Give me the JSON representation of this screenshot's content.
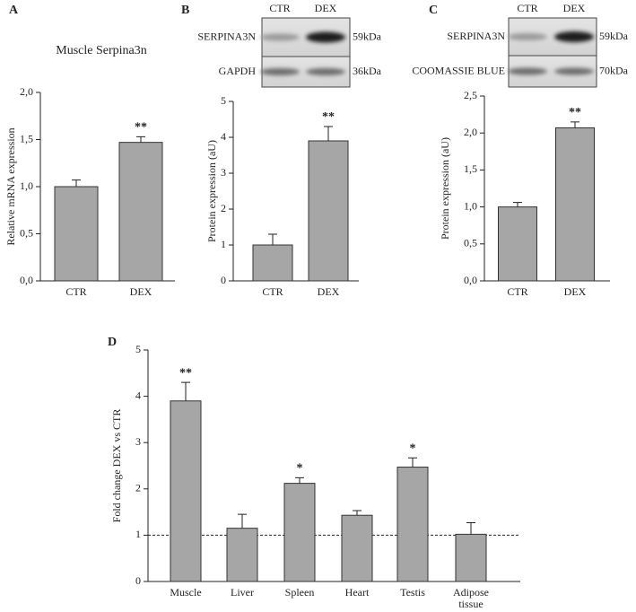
{
  "chart_data": [
    {
      "type": "bar",
      "panel": "A",
      "title": "Muscle Serpina3n",
      "ylabel": "Relative mRNA expression",
      "categories": [
        "CTR",
        "DEX"
      ],
      "values": [
        1.0,
        1.47
      ],
      "errors": [
        0.07,
        0.06
      ],
      "significance": [
        null,
        "**"
      ],
      "color": "#a6a6a6",
      "ylim": [
        0,
        2
      ],
      "yticks": [
        {
          "value": 0,
          "label": "0,0"
        },
        {
          "value": 0.5,
          "label": "0,5"
        },
        {
          "value": 1,
          "label": "1,0"
        },
        {
          "value": 1.5,
          "label": "1,5"
        },
        {
          "value": 2,
          "label": "2,0"
        }
      ]
    },
    {
      "type": "bar",
      "panel": "B",
      "ylabel": "Protein expression (aU)",
      "blot": {
        "lanes": [
          "CTR",
          "DEX"
        ],
        "rows": [
          {
            "protein": "SERPINA3N",
            "size": "59kDa"
          },
          {
            "protein": "GAPDH",
            "size": "36kDa"
          }
        ]
      },
      "categories": [
        "CTR",
        "DEX"
      ],
      "values": [
        1.0,
        3.9
      ],
      "errors": [
        0.3,
        0.4
      ],
      "significance": [
        null,
        "**"
      ],
      "color": "#a6a6a6",
      "ylim": [
        0,
        5
      ],
      "yticks": [
        0,
        1,
        2,
        3,
        4,
        5
      ]
    },
    {
      "type": "bar",
      "panel": "C",
      "ylabel": "Protein expression (aU)",
      "blot": {
        "lanes": [
          "CTR",
          "DEX"
        ],
        "rows": [
          {
            "protein": "SERPINA3N",
            "size": "59kDa"
          },
          {
            "protein": "COOMASSIE BLUE",
            "size": "70kDa"
          }
        ]
      },
      "categories": [
        "CTR",
        "DEX"
      ],
      "values": [
        1.0,
        2.07
      ],
      "errors": [
        0.06,
        0.08
      ],
      "significance": [
        null,
        "**"
      ],
      "color": "#a6a6a6",
      "ylim": [
        0,
        2.5
      ],
      "yticks": [
        {
          "value": 0,
          "label": "0,0"
        },
        {
          "value": 0.5,
          "label": "0,5"
        },
        {
          "value": 1,
          "label": "1,0"
        },
        {
          "value": 1.5,
          "label": "1,5"
        },
        {
          "value": 2,
          "label": "2,0"
        },
        {
          "value": 2.5,
          "label": "2,5"
        }
      ]
    },
    {
      "type": "bar",
      "panel": "D",
      "ylabel": "Fold change DEX vs CTR",
      "categories": [
        "Muscle",
        "Liver",
        "Spleen",
        "Heart",
        "Testis",
        "Adipose tissue"
      ],
      "values": [
        3.9,
        1.15,
        2.12,
        1.43,
        2.47,
        1.02
      ],
      "errors": [
        0.4,
        0.3,
        0.12,
        0.1,
        0.2,
        0.25
      ],
      "significance": [
        "**",
        null,
        "*",
        null,
        "*",
        null
      ],
      "reference_line": 1,
      "color": "#a6a6a6",
      "ylim": [
        0,
        5
      ],
      "yticks": [
        0,
        1,
        2,
        3,
        4,
        5
      ]
    }
  ]
}
